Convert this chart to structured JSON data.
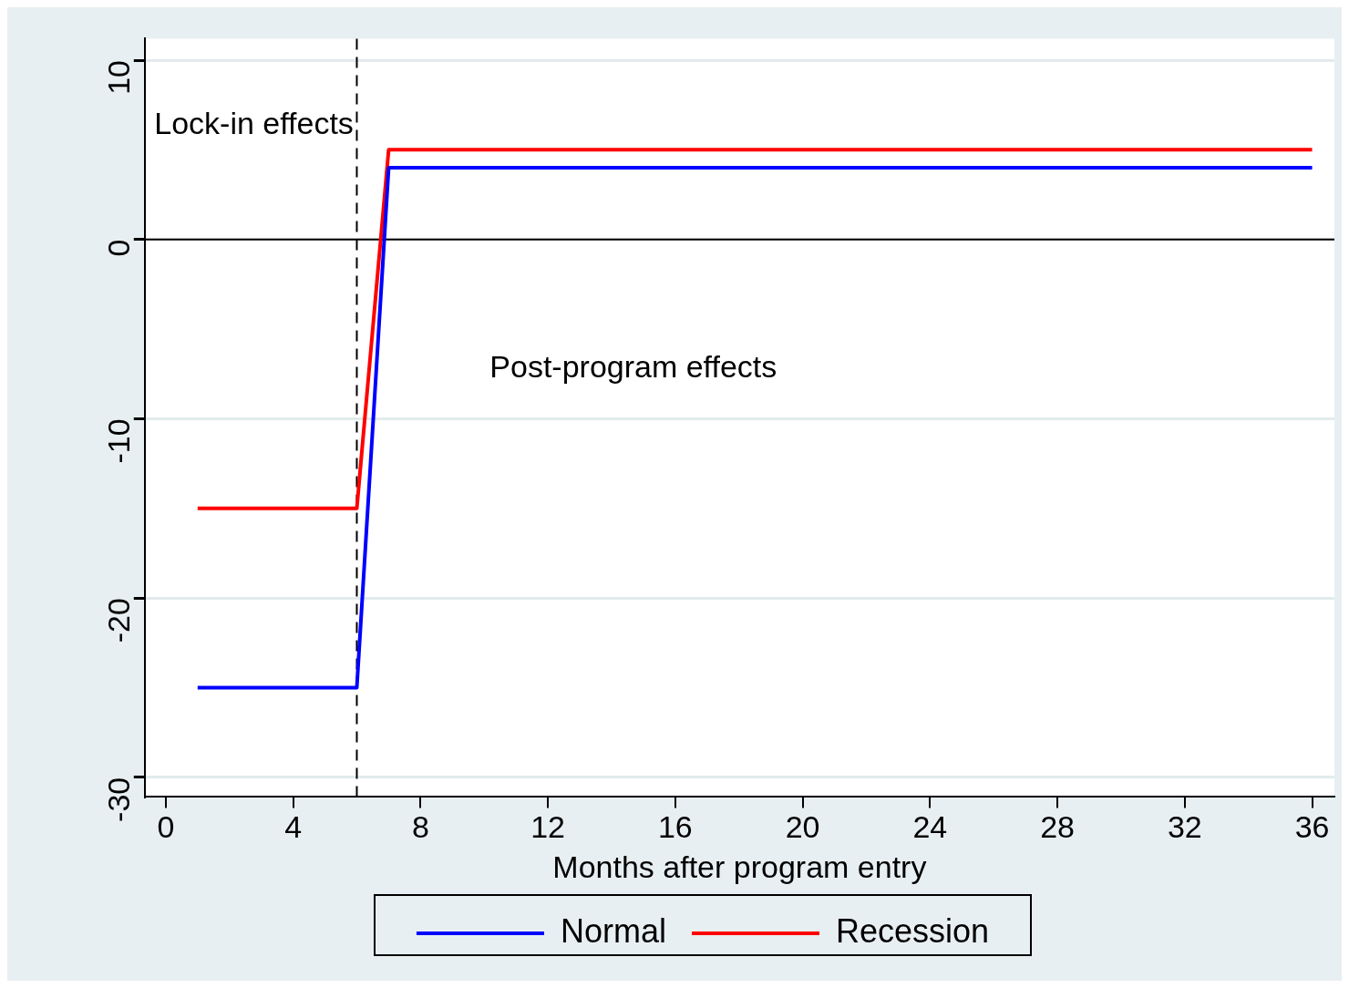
{
  "chart_data": {
    "type": "line",
    "xlabel": "Months after program entry",
    "x": [
      1,
      6,
      7,
      36
    ],
    "series": [
      {
        "name": "Normal",
        "color": "#0000ff",
        "values": [
          -25,
          -25,
          4,
          4
        ]
      },
      {
        "name": "Recession",
        "color": "#ff0000",
        "values": [
          -15,
          -15,
          5,
          5
        ]
      }
    ],
    "xlim": [
      -0.66,
      36.7
    ],
    "xticks": [
      0,
      4,
      8,
      12,
      16,
      20,
      24,
      28,
      32,
      36
    ],
    "ylim": [
      -31.1,
      11.2
    ],
    "yticks": [
      -30,
      -20,
      -10,
      0,
      10
    ],
    "grid": "y",
    "legend": "bottom",
    "marker": "none",
    "line_style": "solid",
    "ref_lines": [
      {
        "axis": "y",
        "value": 0,
        "color": "#000000",
        "line_style": "solid"
      },
      {
        "axis": "x",
        "value": 6,
        "color": "#000000",
        "line_style": "dashed"
      }
    ],
    "annotations": [
      "Lock-in effects",
      "Post-program effects"
    ]
  }
}
